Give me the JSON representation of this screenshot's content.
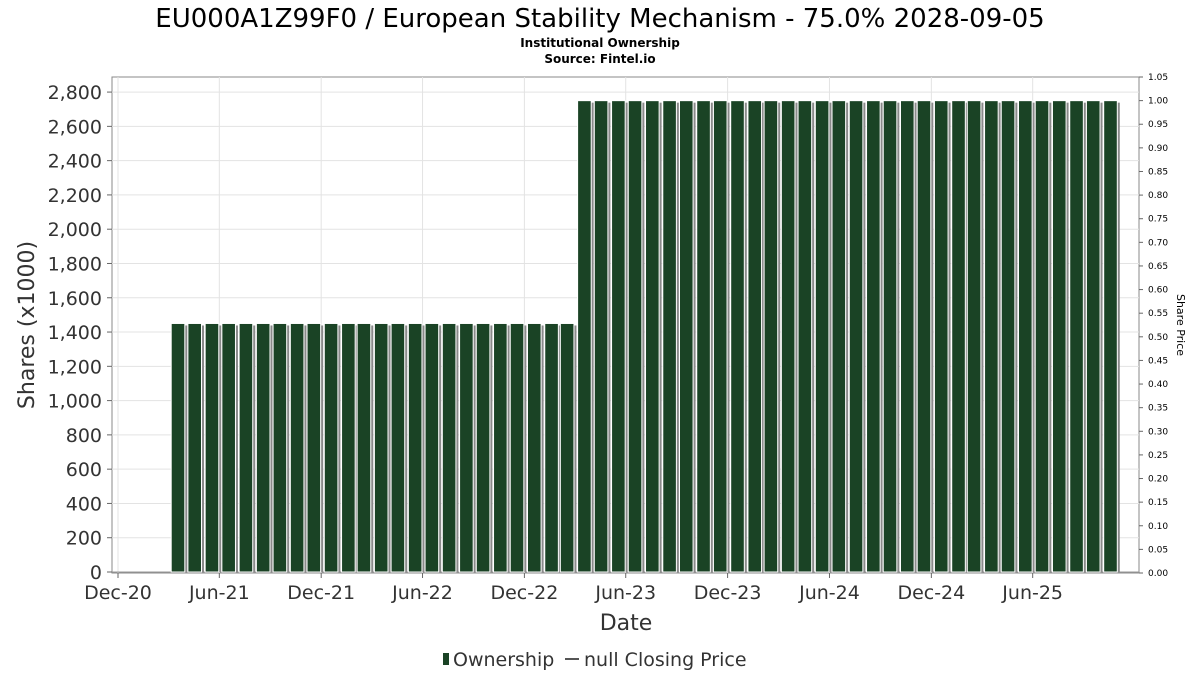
{
  "chart_data": {
    "type": "bar",
    "title": "EU000A1Z99F0 / European Stability Mechanism - 75.0% 2028-09-05",
    "subtitle": "Institutional Ownership",
    "source": "Source: Fintel.io",
    "xlabel": "Date",
    "ylabel": "Shares (x1000)",
    "y2label": "Share Price",
    "ylim": [
      0,
      2900
    ],
    "y2lim": [
      0,
      1.05
    ],
    "xlim": [
      "2020-12-01",
      "2025-11-30"
    ],
    "yticks": [
      0,
      200,
      400,
      600,
      800,
      1000,
      1200,
      1400,
      1600,
      1800,
      2000,
      2200,
      2400,
      2600,
      2800
    ],
    "ytick_labels": [
      "0",
      "200",
      "400",
      "600",
      "800",
      "1,000",
      "1,200",
      "1,400",
      "1,600",
      "1,800",
      "2,000",
      "2,200",
      "2,400",
      "2,600",
      "2,800"
    ],
    "y2ticks": [
      0,
      0.05,
      0.1,
      0.15,
      0.2,
      0.25,
      0.3,
      0.35,
      0.4,
      0.45,
      0.5,
      0.55,
      0.6,
      0.65,
      0.7,
      0.75,
      0.8,
      0.85,
      0.9,
      0.95,
      1.0,
      1.05
    ],
    "y2tick_labels": [
      "0.00",
      "0.05",
      "0.10",
      "0.15",
      "0.20",
      "0.25",
      "0.30",
      "0.35",
      "0.40",
      "0.45",
      "0.50",
      "0.55",
      "0.60",
      "0.65",
      "0.70",
      "0.75",
      "0.80",
      "0.85",
      "0.90",
      "0.95",
      "1.00",
      "1.05"
    ],
    "xticks": [
      {
        "date": "2020-12-01",
        "label": "Dec-20"
      },
      {
        "date": "2021-06-01",
        "label": "Jun-21"
      },
      {
        "date": "2021-12-01",
        "label": "Dec-21"
      },
      {
        "date": "2022-06-01",
        "label": "Jun-22"
      },
      {
        "date": "2022-12-01",
        "label": "Dec-22"
      },
      {
        "date": "2023-06-01",
        "label": "Jun-23"
      },
      {
        "date": "2023-12-01",
        "label": "Dec-23"
      },
      {
        "date": "2024-06-01",
        "label": "Jun-24"
      },
      {
        "date": "2024-12-01",
        "label": "Dec-24"
      },
      {
        "date": "2025-06-01",
        "label": "Jun-25"
      }
    ],
    "grid": true,
    "legend": {
      "position": "bottom",
      "entries": [
        {
          "label": "Ownership",
          "kind": "bar",
          "color": "#1a4325"
        },
        {
          "label": "null Closing Price",
          "kind": "line",
          "color": "#555555"
        }
      ]
    },
    "series": [
      {
        "name": "Ownership",
        "color": "#1a4325",
        "points": [
          {
            "date": "2021-03-31",
            "value": 1450
          },
          {
            "date": "2021-04-30",
            "value": 1450
          },
          {
            "date": "2021-05-31",
            "value": 1450
          },
          {
            "date": "2021-06-30",
            "value": 1450
          },
          {
            "date": "2021-07-31",
            "value": 1450
          },
          {
            "date": "2021-08-31",
            "value": 1450
          },
          {
            "date": "2021-09-30",
            "value": 1450
          },
          {
            "date": "2021-10-31",
            "value": 1450
          },
          {
            "date": "2021-11-30",
            "value": 1450
          },
          {
            "date": "2021-12-31",
            "value": 1450
          },
          {
            "date": "2022-01-31",
            "value": 1450
          },
          {
            "date": "2022-02-28",
            "value": 1450
          },
          {
            "date": "2022-03-31",
            "value": 1450
          },
          {
            "date": "2022-04-30",
            "value": 1450
          },
          {
            "date": "2022-05-31",
            "value": 1450
          },
          {
            "date": "2022-06-30",
            "value": 1450
          },
          {
            "date": "2022-07-31",
            "value": 1450
          },
          {
            "date": "2022-08-31",
            "value": 1450
          },
          {
            "date": "2022-09-30",
            "value": 1450
          },
          {
            "date": "2022-10-31",
            "value": 1450
          },
          {
            "date": "2022-11-30",
            "value": 1450
          },
          {
            "date": "2022-12-31",
            "value": 1450
          },
          {
            "date": "2023-01-31",
            "value": 1450
          },
          {
            "date": "2023-02-28",
            "value": 1450
          },
          {
            "date": "2023-03-31",
            "value": 2750
          },
          {
            "date": "2023-04-30",
            "value": 2750
          },
          {
            "date": "2023-05-31",
            "value": 2750
          },
          {
            "date": "2023-06-30",
            "value": 2750
          },
          {
            "date": "2023-07-31",
            "value": 2750
          },
          {
            "date": "2023-08-31",
            "value": 2750
          },
          {
            "date": "2023-09-30",
            "value": 2750
          },
          {
            "date": "2023-10-31",
            "value": 2750
          },
          {
            "date": "2023-11-30",
            "value": 2750
          },
          {
            "date": "2023-12-31",
            "value": 2750
          },
          {
            "date": "2024-01-31",
            "value": 2750
          },
          {
            "date": "2024-02-29",
            "value": 2750
          },
          {
            "date": "2024-03-31",
            "value": 2750
          },
          {
            "date": "2024-04-30",
            "value": 2750
          },
          {
            "date": "2024-05-31",
            "value": 2750
          },
          {
            "date": "2024-06-30",
            "value": 2750
          },
          {
            "date": "2024-07-31",
            "value": 2750
          },
          {
            "date": "2024-08-31",
            "value": 2750
          },
          {
            "date": "2024-09-30",
            "value": 2750
          },
          {
            "date": "2024-10-31",
            "value": 2750
          },
          {
            "date": "2024-11-30",
            "value": 2750
          },
          {
            "date": "2024-12-31",
            "value": 2750
          },
          {
            "date": "2025-01-31",
            "value": 2750
          },
          {
            "date": "2025-02-28",
            "value": 2750
          },
          {
            "date": "2025-03-31",
            "value": 2750
          },
          {
            "date": "2025-04-30",
            "value": 2750
          },
          {
            "date": "2025-05-31",
            "value": 2750
          },
          {
            "date": "2025-06-30",
            "value": 2750
          },
          {
            "date": "2025-07-31",
            "value": 2750
          },
          {
            "date": "2025-08-31",
            "value": 2750
          },
          {
            "date": "2025-09-30",
            "value": 2750
          },
          {
            "date": "2025-10-31",
            "value": 2750
          }
        ]
      },
      {
        "name": "null Closing Price",
        "color": "#555555",
        "points": []
      }
    ]
  }
}
